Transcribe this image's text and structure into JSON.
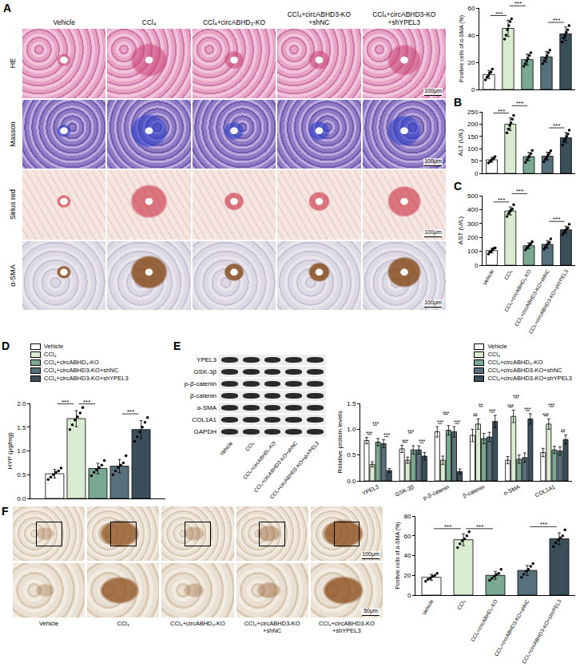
{
  "chart_data": [
    {
      "type": "bar",
      "categories": [
        "Vehicle",
        "CCl₄",
        "CCl₄+circABHD₃-KO",
        "CCl₄+circABHD3-KO+shNC",
        "CCl₄+circABHD3-KO+shYPEL3"
      ],
      "values": [
        11,
        45,
        22,
        24,
        41
      ],
      "errors": [
        3,
        6,
        4,
        4,
        5
      ],
      "points": [
        [
          7,
          9,
          10,
          12,
          13,
          15
        ],
        [
          37,
          40,
          44,
          47,
          50,
          52
        ],
        [
          17,
          19,
          21,
          23,
          25,
          27
        ],
        [
          19,
          21,
          23,
          25,
          27,
          29
        ],
        [
          35,
          38,
          40,
          42,
          44,
          47
        ]
      ],
      "colors": [
        "#ffffff",
        "#d9ebd0",
        "#7aa892",
        "#56707c",
        "#3b4f5b"
      ],
      "ylabel": "Positvie cells of α-SMA (%)",
      "ylim": [
        0,
        60
      ],
      "yticks": [
        0,
        20,
        40,
        60
      ],
      "grid": false,
      "tick_labels": "y",
      "marker": "circle",
      "comparisons": [
        {
          "from": 0,
          "to": 1,
          "label": "***"
        },
        {
          "from": 1,
          "to": 2,
          "label": "***"
        },
        {
          "from": 3,
          "to": 4,
          "label": "***"
        }
      ]
    },
    {
      "type": "bar",
      "panel_label": "B",
      "categories": [
        "Vehicle",
        "CCl₄",
        "CCl₄+circABHD₃-KO",
        "CCl₄+circABHD3-KO+shNC",
        "CCl₄+circABHD3-KO+shYPEL3"
      ],
      "values": [
        55,
        200,
        68,
        70,
        145
      ],
      "errors": [
        10,
        26,
        17,
        16,
        21
      ],
      "points": [
        [
          42,
          48,
          53,
          57,
          62,
          68
        ],
        [
          165,
          180,
          195,
          205,
          220,
          235
        ],
        [
          45,
          55,
          65,
          70,
          80,
          93
        ],
        [
          48,
          58,
          65,
          75,
          82,
          92
        ],
        [
          115,
          130,
          140,
          150,
          160,
          175
        ]
      ],
      "colors": [
        "#ffffff",
        "#d9ebd0",
        "#7aa892",
        "#56707c",
        "#3b4f5b"
      ],
      "ylabel": "ALT (U/L)",
      "ylim": [
        0,
        250
      ],
      "yticks": [
        0,
        50,
        100,
        150,
        200,
        250
      ],
      "grid": false,
      "tick_labels": "y",
      "marker": "circle",
      "comparisons": [
        {
          "from": 0,
          "to": 1,
          "label": "***"
        },
        {
          "from": 1,
          "to": 2,
          "label": "***"
        },
        {
          "from": 3,
          "to": 4,
          "label": "***"
        }
      ]
    },
    {
      "type": "bar",
      "panel_label": "C",
      "categories": [
        "Vehicle",
        "CCl₄",
        "CCl₄+circABHD₃-KO",
        "CCl₄+circABHD3-KO+shNC",
        "CCl₄+circABHD3-KO+shYPEL3"
      ],
      "values": [
        105,
        390,
        140,
        150,
        255
      ],
      "errors": [
        17,
        29,
        21,
        27,
        26
      ],
      "points": [
        [
          80,
          95,
          100,
          110,
          120,
          125
        ],
        [
          350,
          370,
          385,
          395,
          405,
          435
        ],
        [
          110,
          125,
          135,
          145,
          155,
          170
        ],
        [
          115,
          130,
          145,
          155,
          165,
          190
        ],
        [
          220,
          235,
          250,
          260,
          270,
          295
        ]
      ],
      "colors": [
        "#ffffff",
        "#d9ebd0",
        "#7aa892",
        "#56707c",
        "#3b4f5b"
      ],
      "ylabel": "AST (U/L)",
      "ylim": [
        0,
        500
      ],
      "yticks": [
        0,
        100,
        200,
        300,
        400,
        500
      ],
      "grid": false,
      "marker": "circle",
      "comparisons": [
        {
          "from": 0,
          "to": 1,
          "label": "***"
        },
        {
          "from": 1,
          "to": 2,
          "label": "***"
        },
        {
          "from": 3,
          "to": 4,
          "label": "***"
        }
      ]
    },
    {
      "type": "bar",
      "panel_label": "D",
      "categories": [
        null
      ],
      "series": [
        {
          "name": "Vehicle",
          "color": "#ffffff",
          "values": [
            0.52
          ],
          "errors": [
            0.09
          ],
          "points": [
            [
              0.4,
              0.45,
              0.5,
              0.55,
              0.58,
              0.64
            ]
          ]
        },
        {
          "name": "CCl₄",
          "color": "#d9ebd0",
          "values": [
            1.68
          ],
          "errors": [
            0.17
          ],
          "points": [
            [
              1.45,
              1.55,
              1.65,
              1.72,
              1.8,
              1.91
            ]
          ]
        },
        {
          "name": "CCl₄+circABHD₃-KO",
          "color": "#7aa892",
          "values": [
            0.63
          ],
          "errors": [
            0.11
          ],
          "points": [
            [
              0.48,
              0.55,
              0.6,
              0.65,
              0.7,
              0.8
            ]
          ]
        },
        {
          "name": "CCl₄+circABHD3-KO+shNC",
          "color": "#56707c",
          "values": [
            0.68
          ],
          "errors": [
            0.14
          ],
          "points": [
            [
              0.5,
              0.58,
              0.65,
              0.7,
              0.75,
              0.9
            ]
          ]
        },
        {
          "name": "CCl₄+circABHD3-KO+shYPEL3",
          "color": "#3b4f5b",
          "values": [
            1.45
          ],
          "errors": [
            0.19
          ],
          "points": [
            [
              1.2,
              1.3,
              1.4,
              1.5,
              1.6,
              1.7
            ]
          ]
        }
      ],
      "ylabel": "HYP (μg/mg)",
      "ylim": [
        0,
        2.0
      ],
      "yticks": [
        {
          "value": 0,
          "label": "0.0"
        },
        0.5,
        {
          "value": 1,
          "label": "1.0"
        },
        1.5,
        {
          "value": 2,
          "label": "2.0"
        }
      ],
      "grid": false,
      "tick_labels": "y",
      "legend": "top left",
      "marker": "circle",
      "comparisons": [
        {
          "category": 0,
          "from": 0,
          "to": 1,
          "label": "***"
        },
        {
          "category": 0,
          "from": 1,
          "to": 2,
          "label": "***"
        },
        {
          "category": 0,
          "from": 3,
          "to": 4,
          "label": "***"
        }
      ]
    },
    {
      "type": "bar",
      "categories": [
        "YPEL3",
        "GSK-3β",
        "p-β-catenin",
        "β-catenin",
        "α-SMA",
        "COL1A1"
      ],
      "series": [
        {
          "name": "Vehicle",
          "color": "#ffffff",
          "values": [
            0.78,
            0.62,
            0.95,
            0.88,
            0.4,
            0.55
          ],
          "errors": [
            0.06,
            0.07,
            0.1,
            0.12,
            0.07,
            0.08
          ]
        },
        {
          "name": "CCl₄",
          "color": "#d9ebd0",
          "values": [
            0.32,
            0.4,
            0.4,
            1.1,
            1.25,
            1.1
          ],
          "errors": [
            0.05,
            0.06,
            0.08,
            0.1,
            0.12,
            0.1
          ]
        },
        {
          "name": "CCl₄+circABHD₃-KO",
          "color": "#7aa892",
          "values": [
            0.75,
            0.6,
            0.98,
            0.82,
            0.42,
            0.6
          ],
          "errors": [
            0.07,
            0.08,
            0.09,
            0.1,
            0.08,
            0.07
          ]
        },
        {
          "name": "CCl₄+circABHD3-KO+shNC",
          "color": "#56707c",
          "values": [
            0.72,
            0.6,
            0.95,
            0.85,
            0.45,
            0.58
          ],
          "errors": [
            0.08,
            0.08,
            0.1,
            0.09,
            0.09,
            0.08
          ]
        },
        {
          "name": "CCl₄+circABHD3-KO+shYPEL3",
          "color": "#3b4f5b",
          "values": [
            0.2,
            0.48,
            0.18,
            1.15,
            1.2,
            0.8
          ],
          "errors": [
            0.04,
            0.07,
            0.05,
            0.12,
            0.1,
            0.09
          ]
        }
      ],
      "ylabel": "Relative protein levels",
      "ylim": [
        0,
        1.5
      ],
      "yticks": [
        {
          "value": 0,
          "label": "0.0"
        },
        0.5,
        {
          "value": 1,
          "label": "1.0"
        },
        1.5
      ],
      "grid": false,
      "legend": "top right",
      "comparisons": [
        {
          "category": 0,
          "from": 0,
          "to": 1,
          "label": "***"
        },
        {
          "category": 0,
          "from": 1,
          "to": 2,
          "label": "***"
        },
        {
          "category": 0,
          "from": 3,
          "to": 4,
          "label": "***"
        },
        {
          "category": 1,
          "from": 0,
          "to": 1,
          "label": "***"
        },
        {
          "category": 1,
          "from": 1,
          "to": 2,
          "label": "***"
        },
        {
          "category": 1,
          "from": 3,
          "to": 4,
          "label": "***"
        },
        {
          "category": 2,
          "from": 0,
          "to": 1,
          "label": "***"
        },
        {
          "category": 2,
          "from": 1,
          "to": 2,
          "label": "***"
        },
        {
          "category": 2,
          "from": 3,
          "to": 4,
          "label": "***"
        },
        {
          "category": 3,
          "from": 0,
          "to": 1,
          "label": "**"
        },
        {
          "category": 3,
          "from": 1,
          "to": 2,
          "label": "**"
        },
        {
          "category": 3,
          "from": 3,
          "to": 4,
          "label": "***"
        },
        {
          "category": 4,
          "from": 0,
          "to": 1,
          "label": "***"
        },
        {
          "category": 4,
          "from": 1,
          "to": 2,
          "label": "***"
        },
        {
          "category": 4,
          "from": 3,
          "to": 4,
          "label": "***"
        },
        {
          "category": 5,
          "from": 0,
          "to": 1,
          "label": "***"
        },
        {
          "category": 5,
          "from": 1,
          "to": 2,
          "label": "***"
        },
        {
          "category": 5,
          "from": 3,
          "to": 4,
          "label": "**"
        }
      ]
    },
    {
      "type": "bar",
      "categories": [
        "Vehicle",
        "CCl₄",
        "CCl₄+circABHD₃-KO",
        "CCl₄+circABHD3-KO+shNC",
        "CCl₄+circABHD3-KO+shYPEL3"
      ],
      "values": [
        18,
        56,
        20,
        25,
        57
      ],
      "errors": [
        3,
        6,
        4,
        5,
        6
      ],
      "points": [
        [
          14,
          16,
          17,
          19,
          20,
          22
        ],
        [
          48,
          52,
          55,
          57,
          60,
          64
        ],
        [
          15,
          17,
          19,
          21,
          22,
          26
        ],
        [
          18,
          21,
          24,
          26,
          29,
          32
        ],
        [
          49,
          53,
          56,
          58,
          60,
          66
        ]
      ],
      "colors": [
        "#ffffff",
        "#d9ebd0",
        "#7aa892",
        "#56707c",
        "#3b4f5b"
      ],
      "ylabel": "Positvie cells of α-SMA (%)",
      "ylim": [
        0,
        80
      ],
      "yticks": [
        0,
        20,
        40,
        60,
        80
      ],
      "grid": false,
      "marker": "circle",
      "comparisons": [
        {
          "from": 0,
          "to": 1,
          "label": "***"
        },
        {
          "from": 1,
          "to": 2,
          "label": "***"
        },
        {
          "from": 3,
          "to": 4,
          "label": "***"
        }
      ]
    }
  ],
  "figure_panels": {
    "A": {
      "panel_label": "A",
      "columns": [
        "Vehicle",
        "CCl₄",
        "CCl₄+circABHD₃-KO",
        "CCl₄+circABHD3-KO+shNC",
        "CCl₄+circABHD3-KO+shYPEL3"
      ],
      "rows": [
        "HE",
        "Masson",
        "Sirius red",
        "α-SMA"
      ],
      "scale_bar": "100μm"
    },
    "E": {
      "panel_label": "E",
      "proteins": [
        "YPEL3",
        "GSK-3β",
        "p-β-catenin",
        "β-catenin",
        "α-SMA",
        "COL1A1",
        "GAPDH"
      ],
      "lanes": [
        "Vehicle",
        "CCl₄",
        "CCl₄+circABHD₃-KO",
        "CCl₄+circABHD3-KO+shNC",
        "CCl₄+circABHD3-KO+shYPEL3"
      ]
    },
    "F": {
      "panel_label": "F",
      "columns": [
        "Vehicle",
        "CCl₄",
        "CCl₄+circABHD₃-KO",
        "CCl₄+circABHD3-KO+shNC",
        "CCl₄+circABHD3-KO+shYPEL3"
      ],
      "scale_bars": [
        "100μm",
        "50μm"
      ]
    }
  }
}
